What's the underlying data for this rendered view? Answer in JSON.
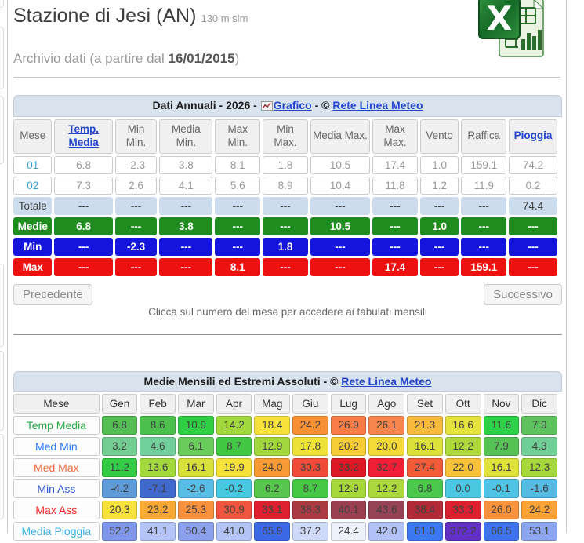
{
  "page": {
    "title": "Stazione di Jesi (AN)",
    "altitude": "130 m slm",
    "archive_prefix": "Archivio dati (a partire dal ",
    "archive_date": "16/01/2015",
    "archive_suffix": ")"
  },
  "annual_table": {
    "title_prefix": "Dati Annuali - 2026 - ",
    "grafico_link": "Grafico",
    "separator": " - © ",
    "copyright_link": "Rete Linea Meteo",
    "columns": [
      "Mese",
      "Temp. Media",
      "Min Min.",
      "Media Min.",
      "Max Min.",
      "Min Max.",
      "Media Max.",
      "Max Max.",
      "Vento",
      "Raffica",
      "Pioggia"
    ],
    "link_column_indexes": [
      1,
      10
    ],
    "rows": [
      {
        "mese": "01",
        "values": [
          "6.8",
          "-2.3",
          "3.8",
          "8.1",
          "1.8",
          "10.5",
          "17.4",
          "1.0",
          "159.1",
          "74.2"
        ]
      },
      {
        "mese": "02",
        "values": [
          "7.3",
          "2.6",
          "4.1",
          "5.6",
          "8.9",
          "10.4",
          "11.8",
          "1.2",
          "11.9",
          "0.2"
        ]
      }
    ],
    "totale": {
      "label": "Totale",
      "values": [
        "---",
        "---",
        "---",
        "---",
        "---",
        "---",
        "---",
        "---",
        "---",
        "74.4"
      ]
    },
    "bands": [
      {
        "label": "Medie",
        "color": "#1e8c1e",
        "values": [
          "6.8",
          "---",
          "3.8",
          "---",
          "---",
          "10.5",
          "---",
          "1.0",
          "---",
          "---"
        ]
      },
      {
        "label": "Min",
        "color": "#1414dd",
        "values": [
          "---",
          "-2.3",
          "---",
          "---",
          "1.8",
          "---",
          "---",
          "---",
          "---",
          "---"
        ]
      },
      {
        "label": "Max",
        "color": "#ee1111",
        "values": [
          "---",
          "---",
          "---",
          "8.1",
          "---",
          "---",
          "17.4",
          "---",
          "159.1",
          "---"
        ]
      }
    ]
  },
  "pager": {
    "prev": "Precedente",
    "next": "Successivo",
    "hint": "Clicca sul numero del mese per accedere ai tabulati mensili"
  },
  "monthly_table": {
    "title_prefix": "Medie Mensili ed Estremi Assoluti - © ",
    "copyright_link": "Rete Linea Meteo",
    "columns": [
      "Mese",
      "Gen",
      "Feb",
      "Mar",
      "Apr",
      "Mag",
      "Giu",
      "Lug",
      "Ago",
      "Set",
      "Ott",
      "Nov",
      "Dic"
    ],
    "rows": [
      {
        "label": "Temp Media",
        "label_color": "#28a745",
        "values": [
          "6.8",
          "8.6",
          "10.9",
          "14.2",
          "18.4",
          "24.2",
          "26.9",
          "26.1",
          "21.3",
          "16.6",
          "11.6",
          "7.9"
        ],
        "colors": [
          "#54be54",
          "#4cc04c",
          "#30ce42",
          "#a0d83e",
          "#f6e23a",
          "#f79033",
          "#f87c46",
          "#f8844e",
          "#f8b93c",
          "#e4e23c",
          "#2ed24a",
          "#5ec25e"
        ]
      },
      {
        "label": "Med Min",
        "label_color": "#2e7bff",
        "values": [
          "3.2",
          "4.6",
          "6.1",
          "8.7",
          "12.9",
          "17.8",
          "20.2",
          "20.0",
          "16.1",
          "12.2",
          "7.9",
          "4.3"
        ],
        "colors": [
          "#72ce92",
          "#70cf9a",
          "#68cd5a",
          "#42c842",
          "#a2d83c",
          "#eee23a",
          "#f7cc36",
          "#f4da38",
          "#dce23a",
          "#aed83c",
          "#54c254",
          "#70cf96"
        ]
      },
      {
        "label": "Med Max",
        "label_color": "#f2683c",
        "values": [
          "11.2",
          "13.6",
          "16.1",
          "19.9",
          "24.0",
          "30.3",
          "33.2",
          "32.7",
          "27.4",
          "22.0",
          "16.1",
          "12.3"
        ],
        "colors": [
          "#34cc44",
          "#a2d83c",
          "#d8e03a",
          "#f6e23a",
          "#f79a33",
          "#ef4b38",
          "#dd1825",
          "#f01f35",
          "#f25b38",
          "#f8c13a",
          "#dee23a",
          "#a6d83c"
        ]
      },
      {
        "label": "Min Ass",
        "label_color": "#2d55d8",
        "values": [
          "-4.2",
          "-7.1",
          "-2.6",
          "-0.2",
          "6.2",
          "8.7",
          "12.9",
          "12.2",
          "6.8",
          "0.0",
          "-0.1",
          "-1.6"
        ],
        "colors": [
          "#5f9bd8",
          "#4168cc",
          "#58bde5",
          "#48c9e2",
          "#58c64e",
          "#46c846",
          "#a6d83c",
          "#abd83c",
          "#4cc84c",
          "#4ac8e2",
          "#50c4e4",
          "#55bbe2"
        ]
      },
      {
        "label": "Max Ass",
        "label_color": "#f22525",
        "values": [
          "20.3",
          "23.2",
          "25.3",
          "30.9",
          "33.1",
          "38.3",
          "40.1",
          "43.6",
          "38.4",
          "33.3",
          "26.0",
          "24.2"
        ],
        "colors": [
          "#f6e23a",
          "#f8a834",
          "#f8923f",
          "#f05540",
          "#dd2030",
          "#a93a42",
          "#9b4050",
          "#954355",
          "#b02a38",
          "#dd2030",
          "#f8923c",
          "#f8a238"
        ]
      },
      {
        "label": "Media Pioggia",
        "label_color": "#38b0e8",
        "values": [
          "52.2",
          "41.1",
          "50.4",
          "41.0",
          "65.9",
          "37.2",
          "24.4",
          "42.0",
          "61.0",
          "372.2",
          "66.5",
          "53.1"
        ],
        "colors": [
          "#7e97ea",
          "#b5c4f6",
          "#8ba1ee",
          "#b4c3f6",
          "#3c6ae6",
          "#cfd9f8",
          "#edf1fb",
          "#b2c2f6",
          "#3b79f0",
          "#6230c4",
          "#3d74ee",
          "#8da6f0"
        ]
      }
    ]
  }
}
